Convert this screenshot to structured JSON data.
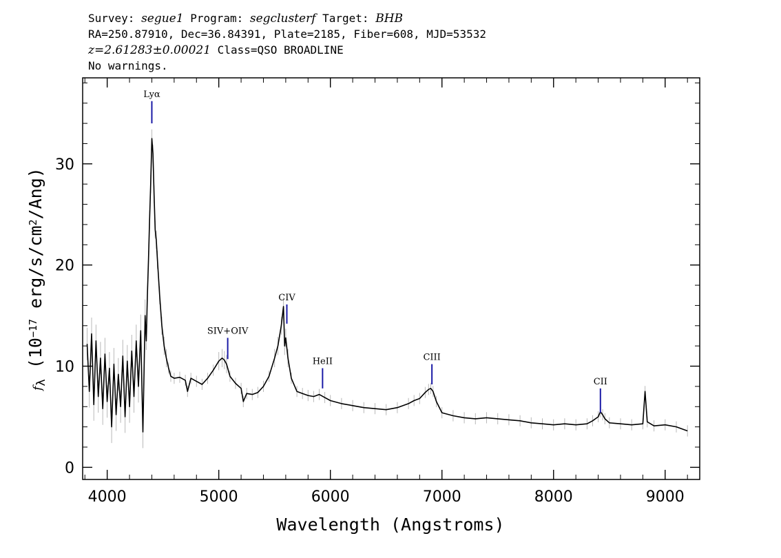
{
  "header": {
    "line1": [
      {
        "text": "Survey: ",
        "italic": false
      },
      {
        "text": "segue1",
        "italic": true
      },
      {
        "text": " Program: ",
        "italic": false
      },
      {
        "text": "segclusterf",
        "italic": true
      },
      {
        "text": " Target: ",
        "italic": false
      },
      {
        "text": "BHB",
        "italic": true
      }
    ],
    "line2": "RA=250.87910, Dec=36.84391, Plate=2185, Fiber=608, MJD=53532",
    "line3_redshift": "z=2.61283±0.00021",
    "line3_class": " Class=QSO BROADLINE",
    "line4": "No warnings."
  },
  "chart_data": {
    "type": "line",
    "xlabel": "Wavelength (Angstroms)",
    "ylabel_parts": {
      "symbol": "f",
      "subscript": "λ",
      "prefix": " (10",
      "exponent": "−17",
      "middle": " erg/s/cm",
      "exponent2": "2",
      "suffix": "/Ang)"
    },
    "xlim": [
      3780,
      9310
    ],
    "ylim": [
      -1.2,
      38.5
    ],
    "xticks": [
      4000,
      5000,
      6000,
      7000,
      8000,
      9000
    ],
    "yticks": [
      0,
      10,
      20,
      30
    ],
    "grid": false,
    "series": [
      {
        "role": "flux",
        "color": "#000000",
        "x": [
          3820,
          3840,
          3860,
          3880,
          3900,
          3920,
          3940,
          3960,
          3980,
          4000,
          4020,
          4040,
          4060,
          4080,
          4100,
          4120,
          4140,
          4160,
          4180,
          4200,
          4220,
          4240,
          4260,
          4280,
          4300,
          4320,
          4340,
          4350,
          4360,
          4370,
          4380,
          4390,
          4400,
          4410,
          4420,
          4430,
          4440,
          4450,
          4470,
          4490,
          4510,
          4530,
          4550,
          4570,
          4600,
          4650,
          4700,
          4720,
          4750,
          4800,
          4850,
          4900,
          4950,
          5000,
          5030,
          5050,
          5070,
          5100,
          5150,
          5200,
          5220,
          5250,
          5300,
          5350,
          5400,
          5450,
          5500,
          5530,
          5560,
          5580,
          5590,
          5600,
          5620,
          5650,
          5700,
          5750,
          5800,
          5850,
          5900,
          5950,
          6000,
          6100,
          6200,
          6300,
          6400,
          6500,
          6600,
          6700,
          6750,
          6800,
          6850,
          6880,
          6900,
          6920,
          6950,
          7000,
          7100,
          7200,
          7300,
          7400,
          7500,
          7600,
          7700,
          7800,
          7900,
          8000,
          8100,
          8200,
          8300,
          8350,
          8400,
          8420,
          8440,
          8460,
          8500,
          8600,
          8700,
          8800,
          8820,
          8840,
          8900,
          9000,
          9100,
          9200
        ],
        "y": [
          12.2,
          7.5,
          13.2,
          6.2,
          12.5,
          7.0,
          10.8,
          5.8,
          11.2,
          6.5,
          9.8,
          4.0,
          10.2,
          5.2,
          9.2,
          6.0,
          11.0,
          5.0,
          10.5,
          6.0,
          11.5,
          7.0,
          12.5,
          8.0,
          13.5,
          3.5,
          15.0,
          12.5,
          17.0,
          20.5,
          24.5,
          28.0,
          32.5,
          31.0,
          27.0,
          23.5,
          22.5,
          20.5,
          17.0,
          14.0,
          12.0,
          10.8,
          9.8,
          9.0,
          8.8,
          8.9,
          8.6,
          7.5,
          8.8,
          8.5,
          8.2,
          8.8,
          9.6,
          10.5,
          10.8,
          10.6,
          10.2,
          9.0,
          8.3,
          7.8,
          6.5,
          7.3,
          7.2,
          7.4,
          8.0,
          9.0,
          10.8,
          12.0,
          14.0,
          15.9,
          12.0,
          12.8,
          10.8,
          8.8,
          7.5,
          7.3,
          7.1,
          7.0,
          7.2,
          6.9,
          6.6,
          6.3,
          6.1,
          5.9,
          5.8,
          5.7,
          5.9,
          6.3,
          6.6,
          6.8,
          7.4,
          7.7,
          7.8,
          7.5,
          6.5,
          5.4,
          5.1,
          4.9,
          4.8,
          4.9,
          4.8,
          4.7,
          4.6,
          4.4,
          4.3,
          4.2,
          4.3,
          4.2,
          4.3,
          4.6,
          5.0,
          5.5,
          5.2,
          4.8,
          4.4,
          4.3,
          4.2,
          4.3,
          7.5,
          4.5,
          4.1,
          4.2,
          4.0,
          3.6
        ]
      }
    ],
    "line_markers": [
      {
        "label": "Lyα",
        "x": 4400,
        "y_bottom": 34.0,
        "y_top": 36.2
      },
      {
        "label": "SIV+OIV",
        "x": 5080,
        "y_bottom": 10.7,
        "y_top": 12.8
      },
      {
        "label": "CIV",
        "x": 5610,
        "y_bottom": 14.2,
        "y_top": 16.1
      },
      {
        "label": "HeII",
        "x": 5930,
        "y_bottom": 7.8,
        "y_top": 9.8
      },
      {
        "label": "CIII",
        "x": 6910,
        "y_bottom": 8.2,
        "y_top": 10.2
      },
      {
        "label": "CII",
        "x": 8420,
        "y_bottom": 5.4,
        "y_top": 7.8
      }
    ],
    "marker_color": "#1a1aa6",
    "error_color": "#b8b8b8"
  }
}
